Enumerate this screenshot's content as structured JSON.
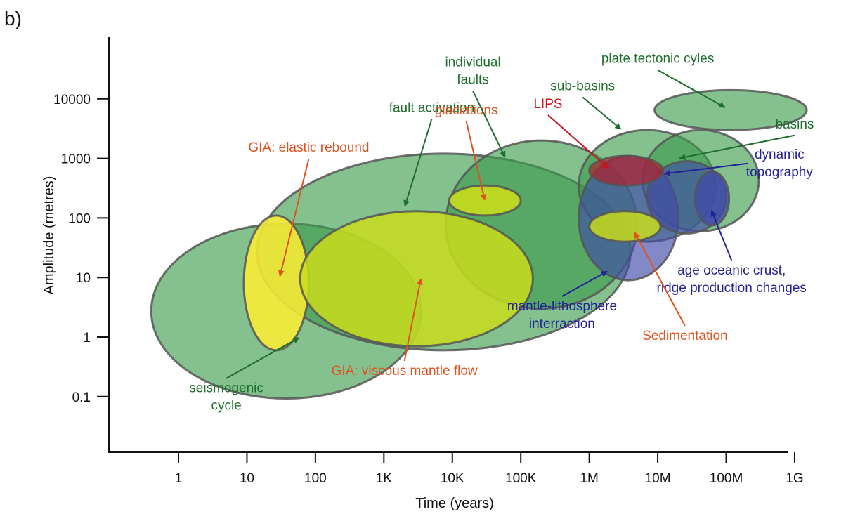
{
  "panel_label": "b)",
  "chart_data": {
    "type": "scatter",
    "title": "",
    "xlabel": "Time (years)",
    "ylabel": "Amplitude (metres)",
    "x_scale": "log",
    "y_scale": "log",
    "x_ticks": [
      {
        "value": 1,
        "label": "1"
      },
      {
        "value": 10,
        "label": "10"
      },
      {
        "value": 100,
        "label": "100"
      },
      {
        "value": 1000,
        "label": "1K"
      },
      {
        "value": 10000,
        "label": "10K"
      },
      {
        "value": 100000,
        "label": "100K"
      },
      {
        "value": 1000000,
        "label": "1M"
      },
      {
        "value": 10000000,
        "label": "10M"
      },
      {
        "value": 100000000,
        "label": "100M"
      },
      {
        "value": 1000000000,
        "label": "1G"
      }
    ],
    "y_ticks": [
      {
        "value": 0.1,
        "label": "0.1"
      },
      {
        "value": 1,
        "label": "1"
      },
      {
        "value": 10,
        "label": "10"
      },
      {
        "value": 100,
        "label": "100"
      },
      {
        "value": 1000,
        "label": "1000"
      },
      {
        "value": 10000,
        "label": "10000"
      }
    ],
    "xlim": [
      0.12,
      1500000000
    ],
    "ylim": [
      0.01,
      100000
    ],
    "grid": false,
    "colors": {
      "green_fill": "#3a9a4a",
      "yellow_fill": "#c8dc1c",
      "bright_yellow_fill": "#ffee33",
      "blue_fill": "#404aa8",
      "red_fill": "#b0202c",
      "green_text": "#1e6e2c",
      "orange_text": "#e0521c",
      "red_text": "#c8141c",
      "blue_text": "#222299",
      "outline": "#555555"
    },
    "regions": [
      {
        "id": "seismogenic-cycle",
        "label": "seismogenic cycle",
        "fill": "green_fill",
        "opacity": 0.62,
        "x_range": [
          0.4,
          3500
        ],
        "y_range": [
          0.093,
          80
        ]
      },
      {
        "id": "fault-activation",
        "label": "fault activation",
        "fill": "green_fill",
        "opacity": 0.62,
        "x_range": [
          14,
          4000000
        ],
        "y_range": [
          0.6,
          1200
        ]
      },
      {
        "id": "individual-faults",
        "label": "individual faults",
        "fill": "green_fill",
        "opacity": 0.62,
        "x_range": [
          8000,
          5000000
        ],
        "y_range": [
          3,
          2000
        ]
      },
      {
        "id": "gia-elastic-rebound",
        "label": "GIA: elastic rebound",
        "fill": "bright_yellow_fill",
        "opacity": 0.85,
        "x_range": [
          9,
          80
        ],
        "y_range": [
          0.6,
          110
        ]
      },
      {
        "id": "gia-viscous-mantle-flow",
        "label": "GIA: viscous mantle flow",
        "fill": "yellow_fill",
        "opacity": 0.85,
        "x_range": [
          60,
          150000
        ],
        "y_range": [
          0.7,
          130
        ]
      },
      {
        "id": "glaciations",
        "label": "glaciations",
        "fill": "yellow_fill",
        "opacity": 0.9,
        "x_range": [
          9000,
          100000
        ],
        "y_range": [
          110,
          350
        ]
      },
      {
        "id": "sub-basins",
        "label": "sub-basins",
        "fill": "green_fill",
        "opacity": 0.62,
        "x_range": [
          700000,
          70000000
        ],
        "y_range": [
          40,
          3000
        ]
      },
      {
        "id": "basins",
        "label": "basins",
        "fill": "green_fill",
        "opacity": 0.62,
        "x_range": [
          6000000,
          300000000
        ],
        "y_range": [
          60,
          3000
        ]
      },
      {
        "id": "plate-tectonic-cycles",
        "label": "plate tectonic cyles",
        "fill": "green_fill",
        "opacity": 0.62,
        "x_range": [
          9000000,
          1500000000
        ],
        "y_range": [
          3000,
          14000
        ]
      },
      {
        "id": "mantle-lithosphere-interraction",
        "label": "mantle-lithosphere interraction",
        "fill": "blue_fill",
        "opacity": 0.65,
        "x_range": [
          700000,
          20000000
        ],
        "y_range": [
          9,
          1100
        ]
      },
      {
        "id": "dynamic-topography",
        "label": "dynamic topography",
        "fill": "blue_fill",
        "opacity": 0.65,
        "x_range": [
          7000000,
          100000000
        ],
        "y_range": [
          55,
          900
        ]
      },
      {
        "id": "age-oceanic-crust",
        "label": "age oceanic crust, ridge production changes",
        "fill": "blue_fill",
        "opacity": 0.75,
        "x_range": [
          35000000,
          110000000
        ],
        "y_range": [
          75,
          600
        ]
      },
      {
        "id": "lips",
        "label": "LIPS",
        "fill": "red_fill",
        "opacity": 0.7,
        "x_range": [
          1000000,
          12000000
        ],
        "y_range": [
          350,
          1100
        ]
      },
      {
        "id": "sedimentation",
        "label": "Sedimentation",
        "fill": "yellow_fill",
        "opacity": 0.85,
        "x_range": [
          1000000,
          11000000
        ],
        "y_range": [
          40,
          130
        ]
      }
    ],
    "annotations": [
      {
        "id": "gia-elastic-rebound",
        "text": [
          "GIA: elastic rebound"
        ],
        "color": "orange_text",
        "text_at": [
          80,
          1300
        ],
        "arrow_to": [
          30,
          10
        ]
      },
      {
        "id": "fault-activation",
        "text": [
          "fault activation"
        ],
        "color": "green_text",
        "text_at": [
          5000,
          6000
        ],
        "arrow_to": [
          2000,
          150
        ]
      },
      {
        "id": "glaciations",
        "text": [
          "glaciations"
        ],
        "color": "orange_text",
        "text_at": [
          16000,
          5500
        ],
        "arrow_to": [
          30000,
          190
        ]
      },
      {
        "id": "individual-faults",
        "text": [
          "individual",
          "faults"
        ],
        "color": "green_text",
        "text_at": [
          20000,
          25000
        ],
        "arrow_to": [
          60000,
          1000
        ]
      },
      {
        "id": "lips",
        "text": [
          "LIPS"
        ],
        "color": "red_text",
        "text_at": [
          250000,
          7000
        ],
        "arrow_to": [
          2000000,
          650
        ]
      },
      {
        "id": "sub-basins",
        "text": [
          "sub-basins"
        ],
        "color": "green_text",
        "text_at": [
          800000,
          14000
        ],
        "arrow_to": [
          3000000,
          3000
        ]
      },
      {
        "id": "plate-tectonic-cycles",
        "text": [
          "plate tectonic cyles"
        ],
        "color": "green_text",
        "text_at": [
          10000000,
          40000
        ],
        "arrow_to": [
          100000000,
          7000
        ]
      },
      {
        "id": "basins",
        "text": [
          "basins"
        ],
        "color": "green_text",
        "text_at": [
          1000000000,
          3200
        ],
        "arrow_to": [
          20000000,
          1000
        ]
      },
      {
        "id": "dynamic-topography",
        "text": [
          "dynamic",
          "topography"
        ],
        "color": "blue_text",
        "text_at": [
          600000000,
          700
        ],
        "arrow_to": [
          12000000,
          550
        ]
      },
      {
        "id": "age-oceanic-crust",
        "text": [
          "age oceanic crust,",
          "ridge production changes"
        ],
        "color": "blue_text",
        "text_at": [
          120000000,
          8
        ],
        "arrow_to": [
          60000000,
          140
        ]
      },
      {
        "id": "mantle-lithosphere-interraction",
        "text": [
          "mantle-lithosphere",
          "interraction"
        ],
        "color": "blue_text",
        "text_at": [
          400000,
          2
        ],
        "arrow_to": [
          1900000,
          13
        ]
      },
      {
        "id": "sedimentation",
        "text": [
          "Sedimentation"
        ],
        "color": "orange_text",
        "text_at": [
          25000000,
          0.9
        ],
        "arrow_to": [
          4500000,
          60
        ]
      },
      {
        "id": "gia-viscous-mantle-flow",
        "text": [
          "GIA: viscous mantle flow"
        ],
        "color": "orange_text",
        "text_at": [
          2000,
          0.23
        ],
        "arrow_to": [
          3500,
          10
        ]
      },
      {
        "id": "seismogenic-cycle",
        "text": [
          "seismogenic",
          "cycle"
        ],
        "color": "green_text",
        "text_at": [
          5,
          0.084
        ],
        "arrow_to": [
          60,
          1
        ]
      }
    ]
  }
}
